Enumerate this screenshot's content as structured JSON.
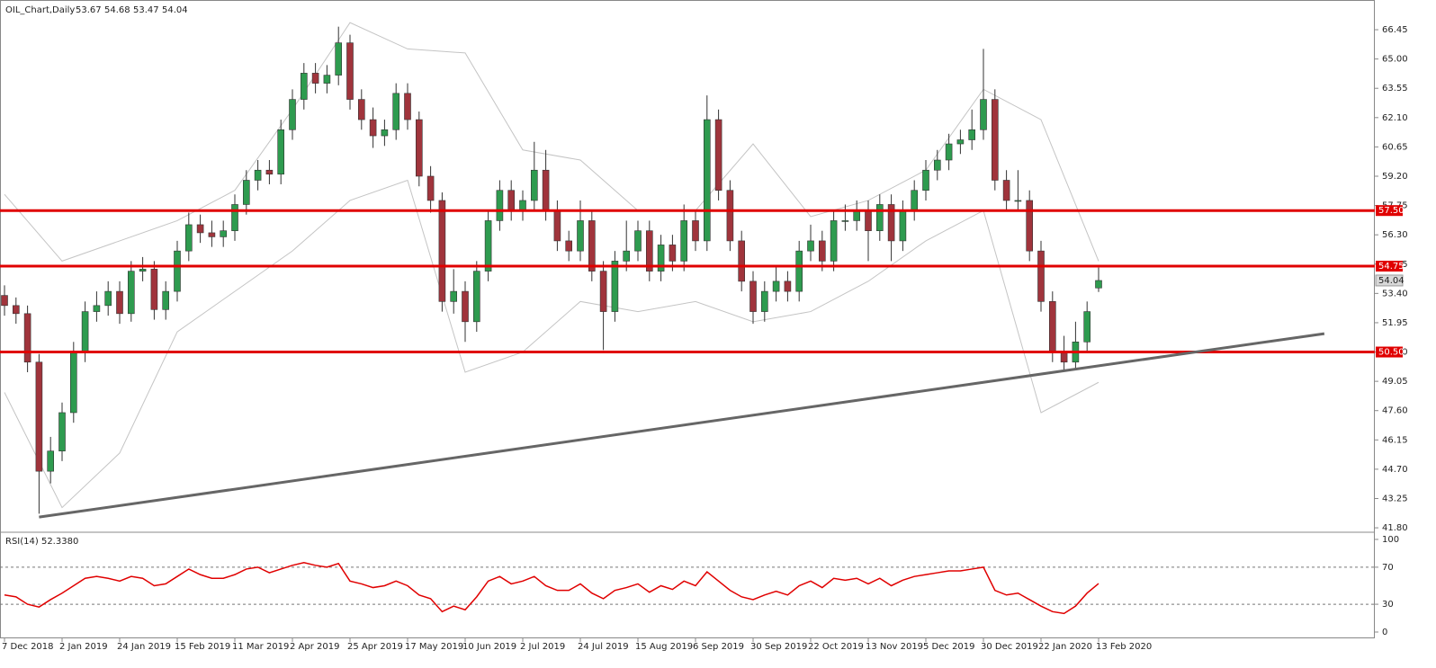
{
  "chart_data": {
    "type": "candlestick",
    "title": "OIL_Chart,Daily",
    "up_color": "#2e9b4f",
    "down_color": "#a0343c",
    "band_color": "#c4c4c4",
    "level_color": "#e00000",
    "trend_color": "#666666",
    "ylim": [
      41.67,
      67.92
    ],
    "yticks": [
      66.45,
      {
        "value": 65,
        "label": "65.00"
      },
      63.55,
      {
        "value": 62.1,
        "label": "62.10"
      },
      60.65,
      {
        "value": 59.2,
        "label": "59.20"
      },
      57.75,
      {
        "value": 56.3,
        "label": "56.30"
      },
      54.85,
      {
        "value": 53.4,
        "label": "53.40"
      },
      51.95,
      {
        "value": 50.5,
        "label": "50.50"
      },
      49.05,
      {
        "value": 47.6,
        "label": "47.60"
      },
      46.15,
      {
        "value": 44.7,
        "label": "44.70"
      },
      43.25,
      {
        "value": 41.8,
        "label": "41.80"
      }
    ],
    "categories": [
      "7 Dec 2018",
      null,
      null,
      null,
      null,
      "2 Jan 2019",
      null,
      null,
      null,
      null,
      "24 Jan 2019",
      null,
      null,
      null,
      null,
      "15 Feb 2019",
      null,
      null,
      null,
      null,
      "11 Mar 2019",
      null,
      null,
      null,
      null,
      "2 Apr 2019",
      null,
      null,
      null,
      null,
      "25 Apr 2019",
      null,
      null,
      null,
      null,
      "17 May 2019",
      null,
      null,
      null,
      null,
      "10 Jun 2019",
      null,
      null,
      null,
      null,
      "2 Jul 2019",
      null,
      null,
      null,
      null,
      "24 Jul 2019",
      null,
      null,
      null,
      null,
      "15 Aug 2019",
      null,
      null,
      null,
      null,
      "6 Sep 2019",
      null,
      null,
      null,
      null,
      "30 Sep 2019",
      null,
      null,
      null,
      null,
      "22 Oct 2019",
      null,
      null,
      null,
      null,
      "13 Nov 2019",
      null,
      null,
      null,
      null,
      "5 Dec 2019",
      null,
      null,
      null,
      null,
      "30 Dec 2019",
      null,
      null,
      null,
      null,
      "22 Jan 2020",
      null,
      null,
      null,
      null,
      "13 Feb 2020"
    ],
    "ohlc": [
      [
        53.3,
        53.8,
        52.3,
        52.8
      ],
      [
        52.8,
        53.2,
        51.9,
        52.4
      ],
      [
        52.4,
        52.8,
        49.5,
        50.0
      ],
      [
        50.0,
        50.4,
        42.5,
        44.6
      ],
      [
        44.6,
        46.3,
        44.0,
        45.6
      ],
      [
        45.6,
        48.0,
        45.1,
        47.5
      ],
      [
        47.5,
        51.0,
        47.0,
        50.5
      ],
      [
        50.5,
        53.0,
        50.0,
        52.5
      ],
      [
        52.5,
        53.5,
        52.0,
        52.8
      ],
      [
        52.8,
        54.0,
        52.3,
        53.5
      ],
      [
        53.5,
        54.0,
        51.9,
        52.4
      ],
      [
        52.4,
        55.0,
        52.0,
        54.5
      ],
      [
        54.5,
        55.2,
        54.0,
        54.6
      ],
      [
        54.6,
        55.0,
        52.1,
        52.6
      ],
      [
        52.6,
        54.0,
        52.1,
        53.5
      ],
      [
        53.5,
        56.0,
        53.0,
        55.5
      ],
      [
        55.5,
        57.4,
        55.0,
        56.8
      ],
      [
        56.8,
        57.3,
        55.9,
        56.4
      ],
      [
        56.4,
        57.0,
        55.7,
        56.2
      ],
      [
        56.2,
        57.0,
        55.7,
        56.5
      ],
      [
        56.5,
        58.3,
        56.0,
        57.8
      ],
      [
        57.8,
        59.5,
        57.3,
        59.0
      ],
      [
        59.0,
        60.0,
        58.5,
        59.5
      ],
      [
        59.5,
        60.0,
        58.8,
        59.3
      ],
      [
        59.3,
        62.0,
        58.8,
        61.5
      ],
      [
        61.5,
        63.5,
        61.0,
        63.0
      ],
      [
        63.0,
        64.8,
        62.5,
        64.3
      ],
      [
        64.3,
        64.8,
        63.3,
        63.8
      ],
      [
        63.8,
        64.7,
        63.3,
        64.2
      ],
      [
        64.2,
        66.6,
        63.7,
        65.8
      ],
      [
        65.8,
        66.2,
        62.5,
        63.0
      ],
      [
        63.0,
        63.5,
        61.5,
        62.0
      ],
      [
        62.0,
        62.6,
        60.6,
        61.2
      ],
      [
        61.2,
        62.0,
        60.7,
        61.5
      ],
      [
        61.5,
        63.8,
        61.0,
        63.3
      ],
      [
        63.3,
        63.8,
        61.5,
        62.0
      ],
      [
        62.0,
        62.4,
        58.7,
        59.2
      ],
      [
        59.2,
        59.7,
        57.4,
        58.0
      ],
      [
        58.0,
        58.4,
        52.5,
        53.0
      ],
      [
        53.0,
        54.6,
        52.4,
        53.5
      ],
      [
        53.5,
        54.0,
        51.0,
        52.0
      ],
      [
        52.0,
        55.0,
        51.5,
        54.5
      ],
      [
        54.5,
        57.5,
        54.0,
        57.0
      ],
      [
        57.0,
        59.0,
        56.5,
        58.5
      ],
      [
        58.5,
        59.0,
        57.0,
        57.5
      ],
      [
        57.5,
        58.5,
        57.0,
        58.0
      ],
      [
        58.0,
        60.9,
        57.5,
        59.5
      ],
      [
        59.5,
        60.5,
        57.0,
        57.5
      ],
      [
        57.5,
        58.0,
        55.5,
        56.0
      ],
      [
        56.0,
        56.5,
        55.0,
        55.5
      ],
      [
        55.5,
        58.0,
        55.0,
        57.0
      ],
      [
        57.0,
        57.5,
        54.0,
        54.5
      ],
      [
        54.5,
        55.0,
        50.6,
        52.5
      ],
      [
        52.5,
        55.5,
        52.0,
        55.0
      ],
      [
        55.0,
        57.0,
        54.5,
        55.5
      ],
      [
        55.5,
        57.0,
        55.0,
        56.5
      ],
      [
        56.5,
        57.0,
        54.0,
        54.5
      ],
      [
        54.5,
        56.3,
        54.0,
        55.8
      ],
      [
        55.8,
        56.3,
        54.5,
        55.0
      ],
      [
        55.0,
        57.8,
        54.5,
        57.0
      ],
      [
        57.0,
        57.5,
        55.5,
        56.0
      ],
      [
        56.0,
        63.2,
        55.5,
        62.0
      ],
      [
        62.0,
        62.5,
        58.0,
        58.5
      ],
      [
        58.5,
        59.0,
        55.5,
        56.0
      ],
      [
        56.0,
        56.5,
        53.5,
        54.0
      ],
      [
        54.0,
        54.5,
        51.9,
        52.5
      ],
      [
        52.5,
        54.0,
        52.0,
        53.5
      ],
      [
        53.5,
        54.8,
        53.0,
        54.0
      ],
      [
        54.0,
        54.5,
        53.0,
        53.5
      ],
      [
        53.5,
        56.0,
        53.0,
        55.5
      ],
      [
        55.5,
        56.8,
        55.0,
        56.0
      ],
      [
        56.0,
        56.5,
        54.5,
        55.0
      ],
      [
        55.0,
        57.5,
        54.5,
        57.0
      ],
      [
        57.0,
        57.8,
        56.5,
        57.0
      ],
      [
        57.0,
        58.0,
        56.5,
        57.5
      ],
      [
        57.5,
        58.0,
        55.0,
        56.5
      ],
      [
        56.5,
        58.3,
        56.0,
        57.8
      ],
      [
        57.8,
        58.3,
        55.0,
        56.0
      ],
      [
        56.0,
        58.0,
        55.5,
        57.5
      ],
      [
        57.5,
        59.0,
        57.0,
        58.5
      ],
      [
        58.5,
        60.0,
        58.0,
        59.5
      ],
      [
        59.5,
        60.5,
        59.0,
        60.0
      ],
      [
        60.0,
        61.3,
        59.5,
        60.8
      ],
      [
        60.8,
        61.5,
        60.3,
        61.0
      ],
      [
        61.0,
        62.5,
        60.5,
        61.5
      ],
      [
        61.5,
        65.5,
        61.0,
        63.0
      ],
      [
        63.0,
        63.5,
        58.5,
        59.0
      ],
      [
        59.0,
        59.5,
        57.5,
        58.0
      ],
      [
        58.0,
        59.5,
        57.5,
        58.0
      ],
      [
        58.0,
        58.5,
        55.0,
        55.5
      ],
      [
        55.5,
        56.0,
        52.5,
        53.0
      ],
      [
        53.0,
        53.5,
        50.0,
        50.5
      ],
      [
        50.5,
        51.3,
        49.6,
        50.0
      ],
      [
        50.0,
        52.0,
        49.7,
        51.0
      ],
      [
        51.0,
        53.0,
        50.5,
        52.5
      ],
      [
        53.67,
        54.68,
        53.47,
        54.04
      ]
    ],
    "bands": {
      "x": [
        0,
        5,
        10,
        15,
        20,
        25,
        30,
        35,
        40,
        45,
        50,
        55,
        60,
        65,
        70,
        75,
        80,
        85,
        90,
        95
      ],
      "upper": [
        58.3,
        55.0,
        56.0,
        57.0,
        58.5,
        62.5,
        66.8,
        65.5,
        65.3,
        60.5,
        60.0,
        57.5,
        57.5,
        60.8,
        57.2,
        58.0,
        59.5,
        63.5,
        62.0,
        55.0
      ],
      "lower": [
        48.5,
        42.8,
        45.5,
        51.5,
        53.5,
        55.5,
        58.0,
        59.0,
        49.5,
        50.5,
        53.0,
        52.5,
        53.0,
        52.0,
        52.5,
        54.0,
        56.0,
        57.5,
        47.5,
        49.0
      ]
    },
    "levels": [
      {
        "value": 57.5,
        "label": "57.50"
      },
      {
        "value": 54.75,
        "label": "54.75"
      },
      {
        "value": 50.5,
        "label": "50.50"
      }
    ],
    "trendline": {
      "start": [
        3,
        42.33
      ],
      "end": [
        114.6,
        51.41
      ]
    },
    "rsi": {
      "title": "RSI(14) 52.3380",
      "color": "#e00000",
      "ylim": [
        -6.8,
        105.8
      ],
      "yticks": [
        100,
        70,
        30,
        0
      ],
      "dashed": [
        70,
        30
      ],
      "values": [
        40,
        38,
        30,
        27,
        35,
        42,
        50,
        58,
        60,
        58,
        55,
        60,
        58,
        50,
        52,
        60,
        68,
        62,
        58,
        58,
        62,
        68,
        70,
        64,
        68,
        72,
        75,
        72,
        70,
        74,
        55,
        52,
        48,
        50,
        55,
        50,
        40,
        36,
        22,
        28,
        24,
        38,
        55,
        60,
        52,
        55,
        60,
        50,
        45,
        45,
        52,
        42,
        36,
        45,
        48,
        52,
        43,
        50,
        46,
        55,
        50,
        65,
        55,
        45,
        38,
        35,
        40,
        44,
        40,
        50,
        55,
        48,
        58,
        56,
        58,
        52,
        58,
        50,
        56,
        60,
        62,
        64,
        66,
        66,
        68,
        70,
        45,
        40,
        42,
        35,
        28,
        22,
        20,
        28,
        42,
        52.338
      ]
    }
  }
}
